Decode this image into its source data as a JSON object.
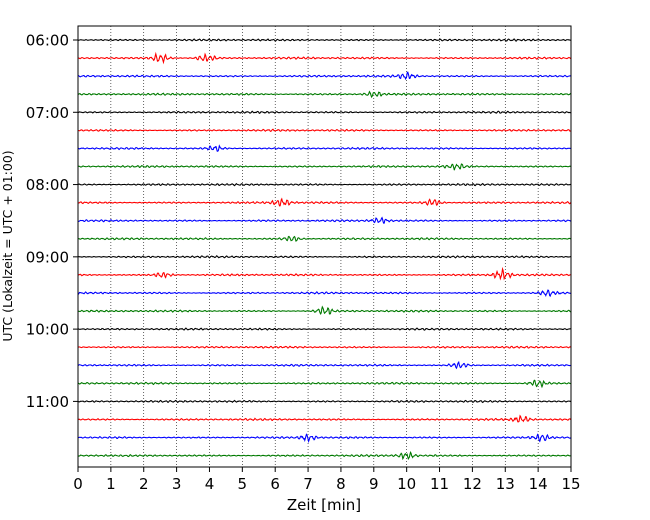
{
  "chart_data": {
    "type": "line",
    "title": "",
    "xlabel": "Zeit  [min]",
    "ylabel": "UTC (Lokalzeit = UTC + 01:00)",
    "xlim": [
      0,
      15
    ],
    "x_ticks": [
      "0",
      "1",
      "2",
      "3",
      "4",
      "5",
      "6",
      "7",
      "8",
      "9",
      "10",
      "11",
      "12",
      "13",
      "14",
      "15"
    ],
    "y_ticks": [
      "06:00",
      "07:00",
      "08:00",
      "09:00",
      "10:00",
      "11:00"
    ],
    "grid": "vertical dotted",
    "trace_interval_minutes": 15,
    "trace_colors": [
      "#000000",
      "#ff0000",
      "#0000ff",
      "#007a00"
    ],
    "traces": [
      {
        "start": "06:00",
        "color": "#000000",
        "bursts": []
      },
      {
        "start": "06:15",
        "color": "#ff0000",
        "bursts": [
          {
            "t": 2.5,
            "amp": 4
          },
          {
            "t": 3.9,
            "amp": 3
          }
        ]
      },
      {
        "start": "06:30",
        "color": "#0000ff",
        "bursts": [
          {
            "t": 10.0,
            "amp": 3
          }
        ]
      },
      {
        "start": "06:45",
        "color": "#007a00",
        "bursts": [
          {
            "t": 9.0,
            "amp": 2.5
          }
        ]
      },
      {
        "start": "07:00",
        "color": "#000000",
        "bursts": []
      },
      {
        "start": "07:15",
        "color": "#ff0000",
        "bursts": []
      },
      {
        "start": "07:30",
        "color": "#0000ff",
        "bursts": [
          {
            "t": 4.2,
            "amp": 2.5
          }
        ]
      },
      {
        "start": "07:45",
        "color": "#007a00",
        "bursts": [
          {
            "t": 11.5,
            "amp": 2.5
          }
        ]
      },
      {
        "start": "08:00",
        "color": "#000000",
        "bursts": []
      },
      {
        "start": "08:15",
        "color": "#ff0000",
        "bursts": [
          {
            "t": 6.2,
            "amp": 3.5
          },
          {
            "t": 10.8,
            "amp": 3
          }
        ]
      },
      {
        "start": "08:30",
        "color": "#0000ff",
        "bursts": [
          {
            "t": 9.2,
            "amp": 2.5
          }
        ]
      },
      {
        "start": "08:45",
        "color": "#007a00",
        "bursts": [
          {
            "t": 6.5,
            "amp": 2.5
          }
        ]
      },
      {
        "start": "09:00",
        "color": "#000000",
        "bursts": []
      },
      {
        "start": "09:15",
        "color": "#ff0000",
        "bursts": [
          {
            "t": 12.9,
            "amp": 4.5
          },
          {
            "t": 2.6,
            "amp": 2.5
          }
        ]
      },
      {
        "start": "09:30",
        "color": "#0000ff",
        "bursts": [
          {
            "t": 14.3,
            "amp": 2.5
          }
        ]
      },
      {
        "start": "09:45",
        "color": "#007a00",
        "bursts": [
          {
            "t": 7.5,
            "amp": 3.5
          }
        ]
      },
      {
        "start": "10:00",
        "color": "#000000",
        "bursts": []
      },
      {
        "start": "10:15",
        "color": "#ff0000",
        "bursts": []
      },
      {
        "start": "10:30",
        "color": "#0000ff",
        "bursts": [
          {
            "t": 11.6,
            "amp": 2.5
          }
        ]
      },
      {
        "start": "10:45",
        "color": "#007a00",
        "bursts": [
          {
            "t": 14.0,
            "amp": 3
          }
        ]
      },
      {
        "start": "11:00",
        "color": "#000000",
        "bursts": []
      },
      {
        "start": "11:15",
        "color": "#ff0000",
        "bursts": [
          {
            "t": 13.5,
            "amp": 3
          }
        ]
      },
      {
        "start": "11:30",
        "color": "#0000ff",
        "bursts": [
          {
            "t": 7.0,
            "amp": 3
          },
          {
            "t": 14.1,
            "amp": 3
          }
        ]
      },
      {
        "start": "11:45",
        "color": "#007a00",
        "bursts": [
          {
            "t": 10.0,
            "amp": 3
          }
        ]
      }
    ]
  }
}
